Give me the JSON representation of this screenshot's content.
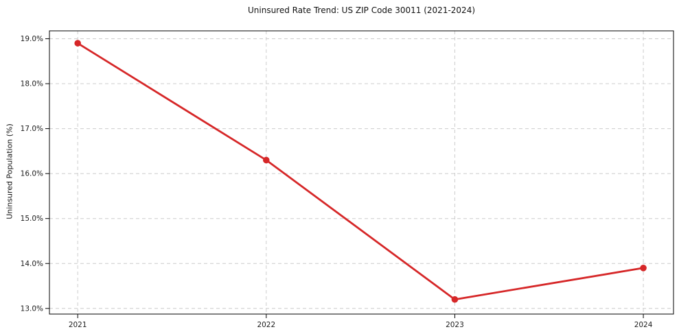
{
  "figure": {
    "background": "#ffffff",
    "text_color": "#1a1a1a"
  },
  "chart_data": {
    "type": "line",
    "title": "Uninsured Rate Trend: US ZIP Code 30011 (2021-2024)",
    "xlabel": "",
    "ylabel": "Uninsured Population (%)",
    "x": [
      2021,
      2022,
      2023,
      2024
    ],
    "x_tick_labels": [
      "2021",
      "2022",
      "2023",
      "2024"
    ],
    "series": [
      {
        "values": [
          18.9,
          16.3,
          13.2,
          13.9
        ],
        "color": "#d62728",
        "marker": "circle",
        "line_width": 2.8,
        "marker_radius": 4.8
      }
    ],
    "yticks": [
      13.0,
      14.0,
      15.0,
      16.0,
      17.0,
      18.0,
      19.0
    ],
    "ytick_suffix": "%",
    "ytick_decimals": 1,
    "ylim": [
      12.875,
      19.175
    ],
    "xlim": [
      2020.85,
      2024.16
    ],
    "grid": true,
    "grid_color": "#cccccc",
    "grid_style": "dashed",
    "legend": false,
    "spine_color": "#000000"
  }
}
